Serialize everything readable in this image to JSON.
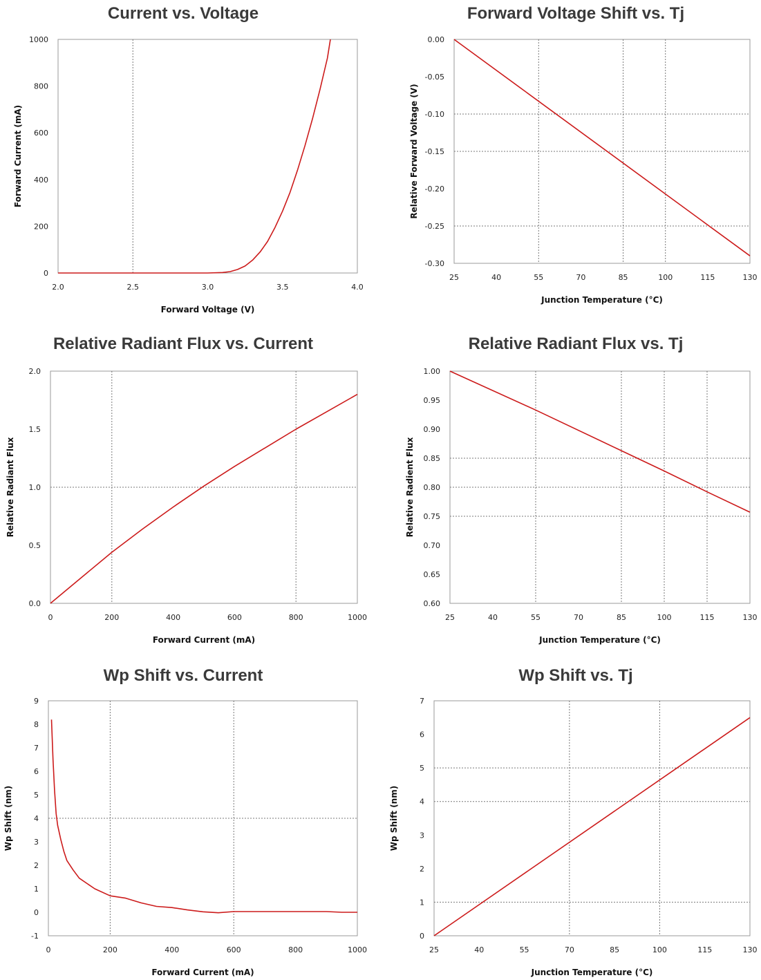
{
  "chart_data": [
    {
      "type": "line",
      "title": "Current  vs. Voltage",
      "xlabel": "Forward Voltage (V)",
      "ylabel": "Forward Current (mA)",
      "xlim": [
        2.0,
        4.0
      ],
      "ylim": [
        0,
        1000
      ],
      "xticks": [
        "2.0",
        "2.5",
        "3.0",
        "3.5",
        "4.0"
      ],
      "yticks": [
        "0",
        "200",
        "400",
        "600",
        "800",
        "1000"
      ],
      "xgrid": [
        2.5
      ],
      "ygrid": [],
      "grid": true,
      "color": "#cc1a1a",
      "series": [
        {
          "x": [
            2.0,
            2.5,
            3.0,
            3.1,
            3.15,
            3.2,
            3.25,
            3.3,
            3.35,
            3.4,
            3.45,
            3.5,
            3.55,
            3.6,
            3.65,
            3.7,
            3.75,
            3.8,
            3.82
          ],
          "y": [
            0,
            0,
            0,
            2,
            6,
            15,
            30,
            55,
            90,
            135,
            195,
            265,
            345,
            440,
            545,
            660,
            785,
            920,
            1000
          ]
        }
      ]
    },
    {
      "type": "line",
      "title": "Forward Voltage Shift vs. Tj",
      "xlabel": "Junction Temperature (°C)",
      "ylabel": "Relative Forward Voltage (V)",
      "xlim": [
        25,
        130
      ],
      "ylim": [
        -0.3,
        0.0
      ],
      "xticks": [
        "25",
        "40",
        "55",
        "70",
        "85",
        "100",
        "115",
        "130"
      ],
      "yticks": [
        "0.00",
        "-0.05",
        "-0.10",
        "-0.15",
        "-0.20",
        "-0.25",
        "-0.30"
      ],
      "xgrid": [
        55,
        85,
        100
      ],
      "ygrid": [
        -0.1,
        -0.15,
        -0.25
      ],
      "grid": true,
      "color": "#cc1a1a",
      "series": [
        {
          "x": [
            25,
            130
          ],
          "y": [
            0.0,
            -0.29
          ]
        }
      ]
    },
    {
      "type": "line",
      "title": "Relative Radiant Flux vs. Current",
      "xlabel": "Forward Current (mA)",
      "ylabel": "Relative Radiant Flux",
      "xlim": [
        0,
        1000
      ],
      "ylim": [
        0.0,
        2.0
      ],
      "xticks": [
        "0",
        "200",
        "400",
        "600",
        "800",
        "1000"
      ],
      "yticks": [
        "0.0",
        "0.5",
        "1.0",
        "1.5",
        "2.0"
      ],
      "xgrid": [
        200,
        800
      ],
      "ygrid": [
        1.0
      ],
      "grid": true,
      "color": "#cc1a1a",
      "series": [
        {
          "x": [
            0,
            100,
            200,
            300,
            400,
            500,
            600,
            700,
            800,
            900,
            1000
          ],
          "y": [
            0.0,
            0.22,
            0.44,
            0.64,
            0.83,
            1.01,
            1.18,
            1.34,
            1.5,
            1.65,
            1.8
          ]
        }
      ]
    },
    {
      "type": "line",
      "title": "Relative Radiant Flux vs. Tj",
      "xlabel": "Junction Temperature (°C)",
      "ylabel": "Relative Radient Flux",
      "xlim": [
        25,
        130
      ],
      "ylim": [
        0.6,
        1.0
      ],
      "xticks": [
        "25",
        "40",
        "55",
        "70",
        "85",
        "100",
        "115",
        "130"
      ],
      "yticks": [
        "0.60",
        "0.65",
        "0.70",
        "0.75",
        "0.80",
        "0.85",
        "0.90",
        "0.95",
        "1.00"
      ],
      "xgrid": [
        55,
        85,
        100,
        115
      ],
      "ygrid": [
        0.75,
        0.8,
        0.85
      ],
      "grid": true,
      "color": "#cc1a1a",
      "series": [
        {
          "x": [
            25,
            55,
            85,
            100,
            115,
            130
          ],
          "y": [
            1.0,
            0.933,
            0.863,
            0.828,
            0.792,
            0.757
          ]
        }
      ]
    },
    {
      "type": "line",
      "title": "Wp Shift vs. Current",
      "xlabel": "Forward Current (mA)",
      "ylabel": "Wp Shift (nm)",
      "xlim": [
        0,
        1000
      ],
      "ylim": [
        -1,
        9
      ],
      "xticks": [
        "0",
        "200",
        "400",
        "600",
        "800",
        "1000"
      ],
      "yticks": [
        "-1",
        "0",
        "1",
        "2",
        "3",
        "4",
        "5",
        "6",
        "7",
        "8",
        "9"
      ],
      "xgrid": [
        200,
        600
      ],
      "ygrid": [
        4
      ],
      "grid": true,
      "color": "#cc1a1a",
      "series": [
        {
          "x": [
            10,
            15,
            20,
            25,
            30,
            40,
            50,
            60,
            80,
            100,
            150,
            200,
            250,
            300,
            350,
            400,
            450,
            500,
            550,
            600,
            700,
            800,
            900,
            950,
            1000
          ],
          "y": [
            8.2,
            6.5,
            5.2,
            4.2,
            3.7,
            3.1,
            2.6,
            2.2,
            1.8,
            1.45,
            1.0,
            0.7,
            0.6,
            0.4,
            0.25,
            0.2,
            0.1,
            0.02,
            -0.02,
            0.03,
            0.03,
            0.03,
            0.03,
            0.0,
            0.0
          ]
        }
      ]
    },
    {
      "type": "line",
      "title": "Wp Shift vs. Tj",
      "xlabel": "Junction Temperature (°C)",
      "ylabel": "Wp Shift (nm)",
      "xlim": [
        25,
        130
      ],
      "ylim": [
        0,
        7
      ],
      "xticks": [
        "25",
        "40",
        "55",
        "70",
        "85",
        "100",
        "115",
        "130"
      ],
      "yticks": [
        "0",
        "1",
        "2",
        "3",
        "4",
        "5",
        "6",
        "7"
      ],
      "xgrid": [
        70,
        100
      ],
      "ygrid": [
        1,
        4,
        5
      ],
      "grid": true,
      "color": "#cc1a1a",
      "series": [
        {
          "x": [
            25,
            130
          ],
          "y": [
            0,
            6.5
          ]
        }
      ]
    }
  ]
}
